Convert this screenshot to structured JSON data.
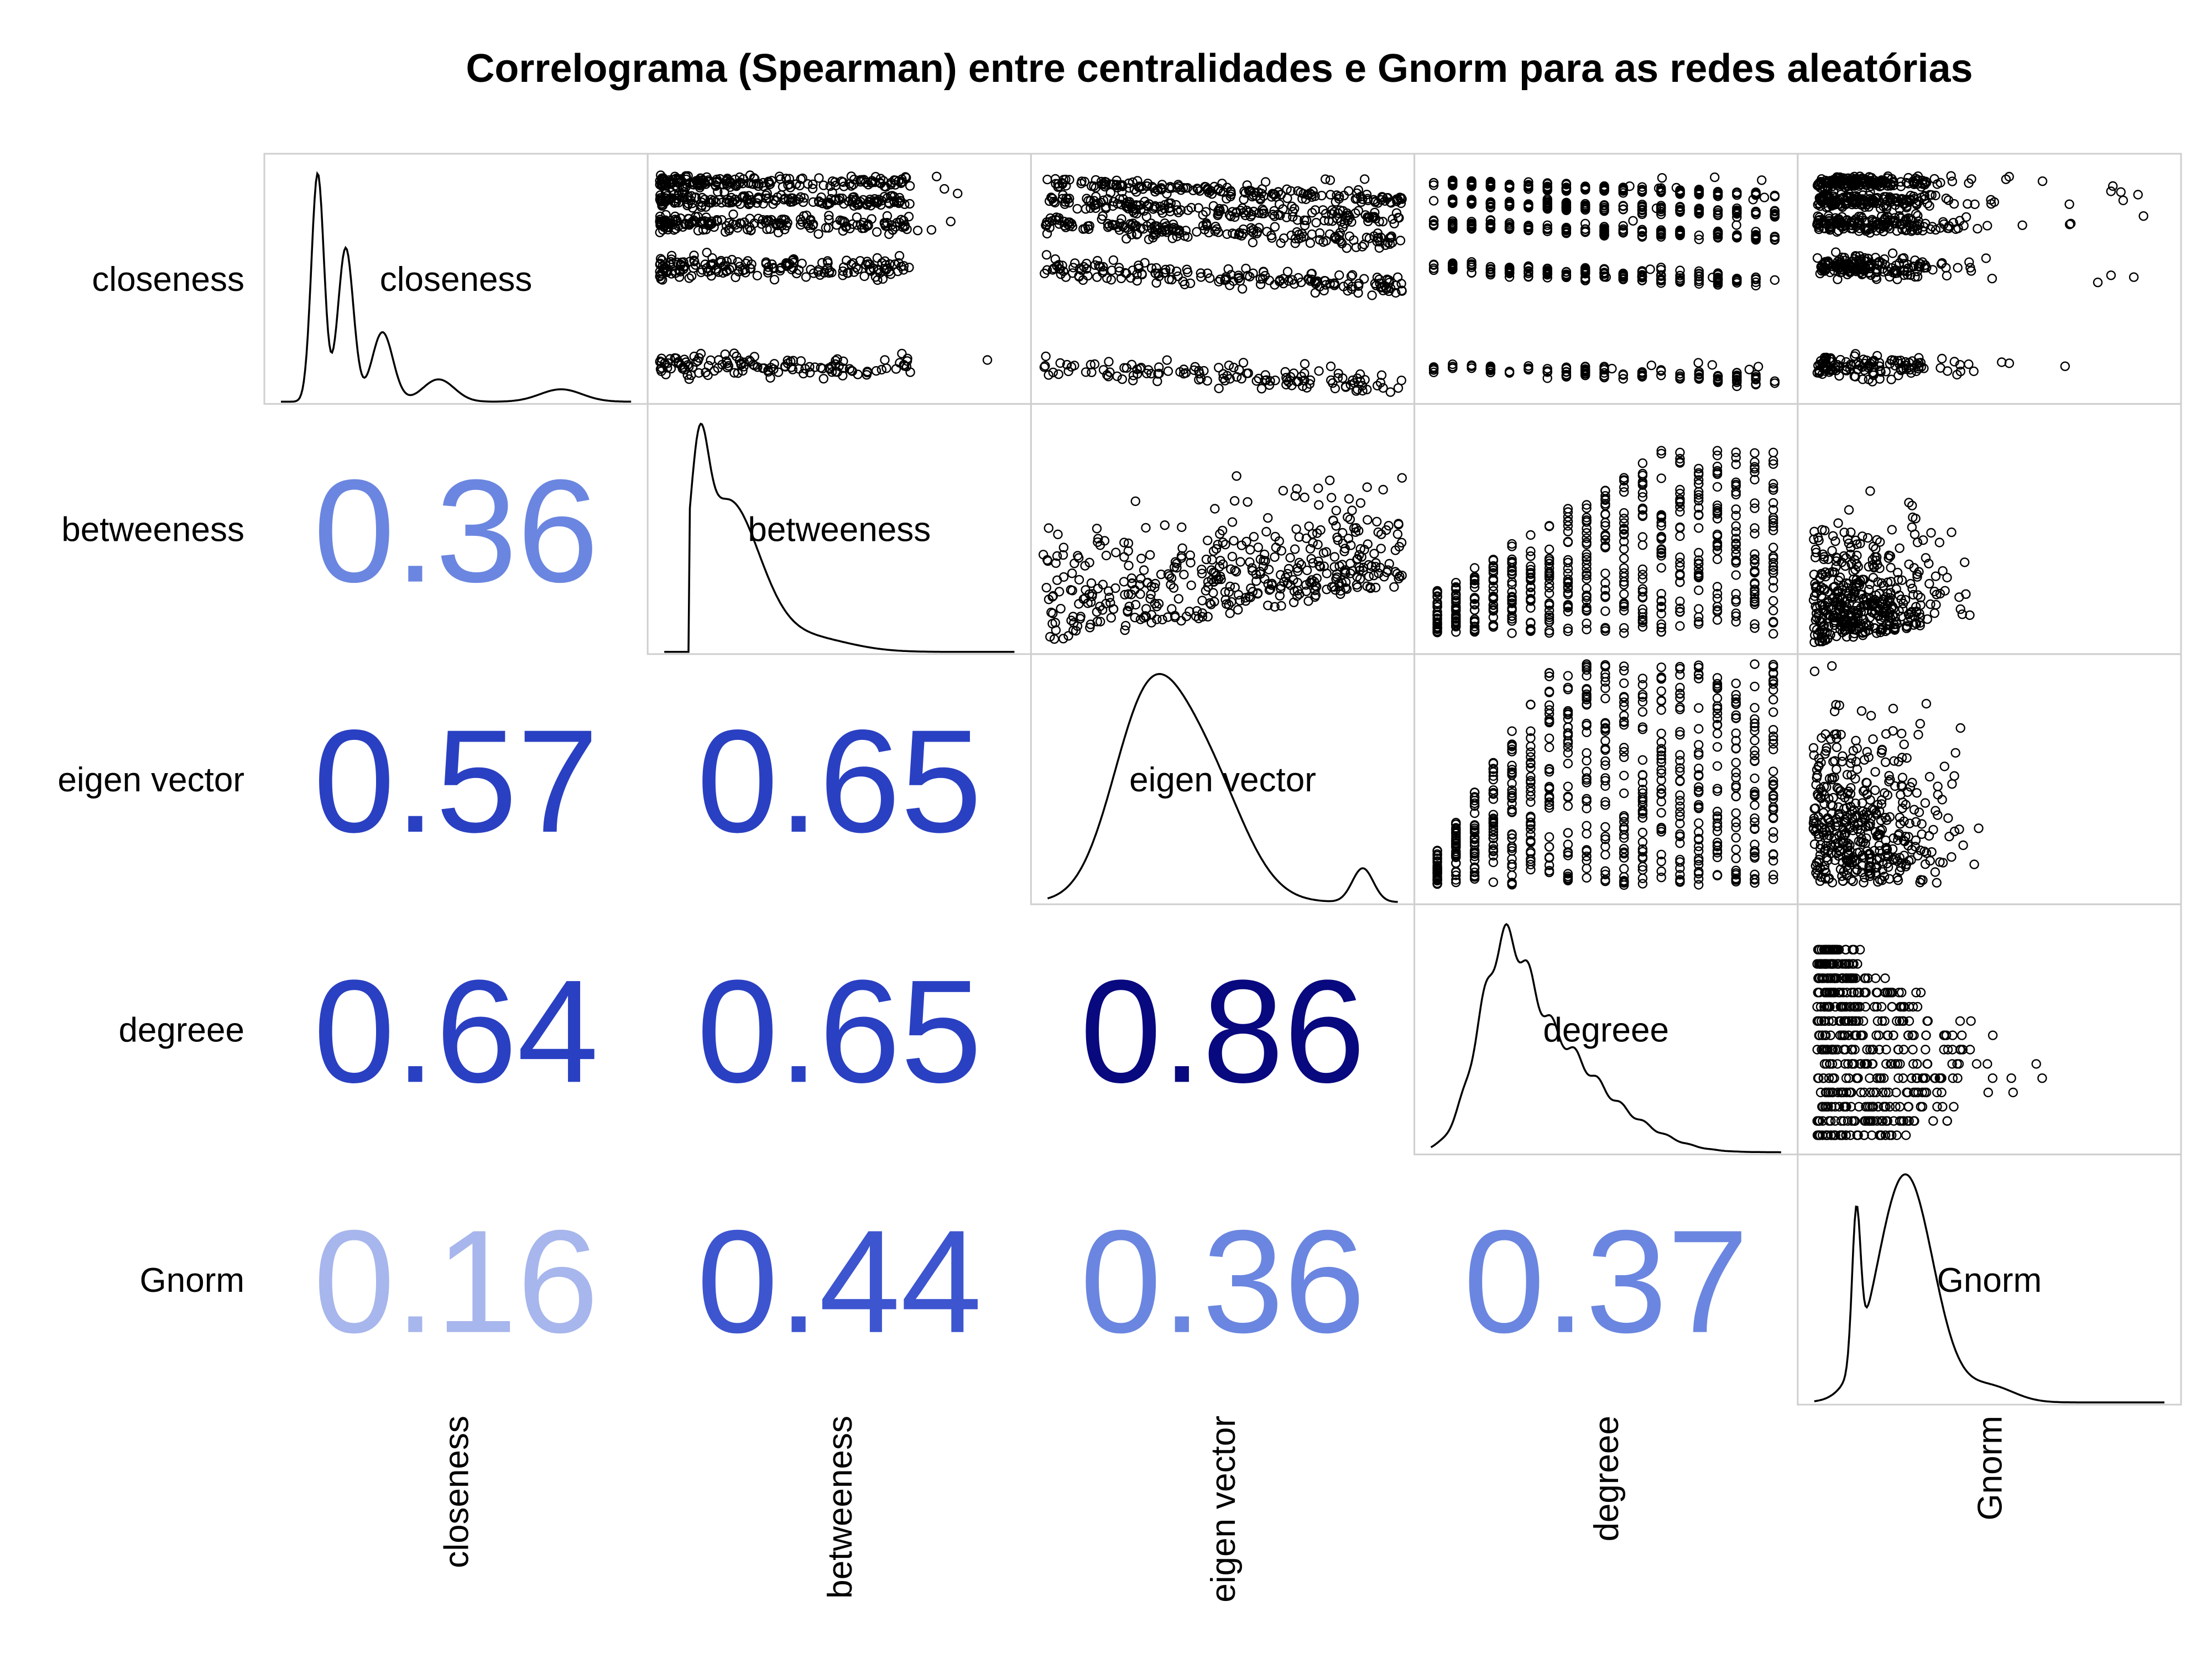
{
  "chart_data": {
    "type": "scatter",
    "title": "Correlograma (Spearman) entre centralidades e Gnorm para as redes aleatórias",
    "method": "Spearman",
    "layout": "pairs matrix: lower triangle = correlation coefficients, diagonal = density curves, upper triangle = scatter plots",
    "variables": [
      "closeness",
      "betweeness",
      "eigen vector",
      "degreee",
      "Gnorm"
    ],
    "correlations": [
      {
        "row": "betweeness",
        "col": "closeness",
        "value": "0.36",
        "color": "#6b86e0"
      },
      {
        "row": "eigen vector",
        "col": "closeness",
        "value": "0.57",
        "color": "#2a40c2"
      },
      {
        "row": "eigen vector",
        "col": "betweeness",
        "value": "0.65",
        "color": "#2a40c2"
      },
      {
        "row": "degreee",
        "col": "closeness",
        "value": "0.64",
        "color": "#2a40c2"
      },
      {
        "row": "degreee",
        "col": "betweeness",
        "value": "0.65",
        "color": "#2a40c2"
      },
      {
        "row": "degreee",
        "col": "eigen vector",
        "value": "0.86",
        "color": "#08087f"
      },
      {
        "row": "Gnorm",
        "col": "closeness",
        "value": "0.16",
        "color": "#a7b6ec"
      },
      {
        "row": "Gnorm",
        "col": "betweeness",
        "value": "0.44",
        "color": "#3d55cf"
      },
      {
        "row": "Gnorm",
        "col": "eigen vector",
        "value": "0.36",
        "color": "#6b86e0"
      },
      {
        "row": "Gnorm",
        "col": "degreee",
        "value": "0.37",
        "color": "#6b86e0"
      }
    ],
    "grid": false,
    "point_style": "open circles",
    "line_color": "#000000"
  }
}
